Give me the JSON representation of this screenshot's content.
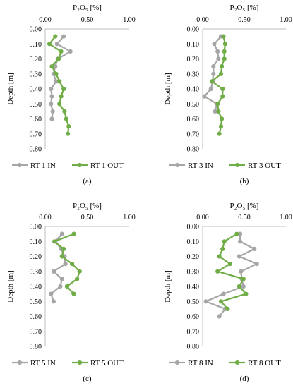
{
  "chart_data": [
    {
      "type": "line",
      "panel_label": "(a)",
      "title": "P₂O₅ [%]",
      "ylabel": "Depth [m]",
      "xlim": [
        0,
        1
      ],
      "ylim": [
        0,
        0.8
      ],
      "y_reversed": true,
      "x_axis_position": "top",
      "xticks": [
        "0.00",
        "0.50",
        "1.00"
      ],
      "yticks": [
        "0.00",
        "0.10",
        "0.20",
        "0.30",
        "0.40",
        "0.50",
        "0.60",
        "0.70",
        "0.80"
      ],
      "legend": "bottom",
      "series": [
        {
          "name": "RT 1 IN",
          "color": "#a6a6a6",
          "points": [
            [
              0.22,
              0.05
            ],
            [
              0.14,
              0.1
            ],
            [
              0.3,
              0.15
            ],
            [
              0.15,
              0.2
            ],
            [
              0.12,
              0.25
            ],
            [
              0.1,
              0.3
            ],
            [
              0.13,
              0.35
            ],
            [
              0.07,
              0.4
            ],
            [
              0.08,
              0.45
            ],
            [
              0.07,
              0.5
            ],
            [
              0.09,
              0.55
            ],
            [
              0.08,
              0.6
            ]
          ]
        },
        {
          "name": "RT 1 OUT",
          "color": "#70ad47",
          "points": [
            [
              0.12,
              0.05
            ],
            [
              0.05,
              0.1
            ],
            [
              0.19,
              0.15
            ],
            [
              0.16,
              0.2
            ],
            [
              0.08,
              0.25
            ],
            [
              0.13,
              0.3
            ],
            [
              0.17,
              0.35
            ],
            [
              0.22,
              0.4
            ],
            [
              0.19,
              0.45
            ],
            [
              0.17,
              0.5
            ],
            [
              0.23,
              0.55
            ],
            [
              0.25,
              0.6
            ],
            [
              0.28,
              0.65
            ],
            [
              0.27,
              0.7
            ]
          ]
        }
      ]
    },
    {
      "type": "line",
      "panel_label": "(b)",
      "title": "P₂O₅ [%]",
      "ylabel": "Depth [m]",
      "xlim": [
        0,
        1
      ],
      "ylim": [
        0,
        0.8
      ],
      "y_reversed": true,
      "x_axis_position": "top",
      "xticks": [
        "0.00",
        "0.50",
        "1.00"
      ],
      "yticks": [
        "0.00",
        "0.10",
        "0.20",
        "0.30",
        "0.40",
        "0.50",
        "0.60",
        "0.70",
        "0.80"
      ],
      "legend": "bottom",
      "series": [
        {
          "name": "RT 3 IN",
          "color": "#a6a6a6",
          "points": [
            [
              0.22,
              0.05
            ],
            [
              0.14,
              0.1
            ],
            [
              0.18,
              0.15
            ],
            [
              0.19,
              0.2
            ],
            [
              0.13,
              0.25
            ],
            [
              0.13,
              0.3
            ],
            [
              0.12,
              0.35
            ],
            [
              0.1,
              0.4
            ],
            [
              0.02,
              0.45
            ],
            [
              0.17,
              0.5
            ],
            [
              0.15,
              0.55
            ]
          ]
        },
        {
          "name": "RT 3 OUT",
          "color": "#70ad47",
          "points": [
            [
              0.25,
              0.05
            ],
            [
              0.27,
              0.1
            ],
            [
              0.26,
              0.15
            ],
            [
              0.26,
              0.2
            ],
            [
              0.23,
              0.25
            ],
            [
              0.22,
              0.3
            ],
            [
              0.11,
              0.35
            ],
            [
              0.24,
              0.4
            ],
            [
              0.24,
              0.45
            ],
            [
              0.18,
              0.5
            ],
            [
              0.19,
              0.55
            ],
            [
              0.23,
              0.6
            ],
            [
              0.22,
              0.65
            ],
            [
              0.2,
              0.7
            ]
          ]
        }
      ]
    },
    {
      "type": "line",
      "panel_label": "(c)",
      "title": "P₂O₅ [%]",
      "ylabel": "Depth [m]",
      "xlim": [
        0,
        1
      ],
      "ylim": [
        0,
        0.8
      ],
      "y_reversed": true,
      "x_axis_position": "top",
      "xticks": [
        "0.00",
        "0.50",
        "1.00"
      ],
      "yticks": [
        "0.00",
        "0.10",
        "0.20",
        "0.30",
        "0.40",
        "0.50",
        "0.60",
        "0.70",
        "0.80"
      ],
      "legend": "bottom",
      "series": [
        {
          "name": "RT 5 IN",
          "color": "#a6a6a6",
          "points": [
            [
              0.2,
              0.05
            ],
            [
              0.12,
              0.1
            ],
            [
              0.19,
              0.15
            ],
            [
              0.23,
              0.2
            ],
            [
              0.24,
              0.25
            ],
            [
              0.1,
              0.3
            ],
            [
              0.2,
              0.35
            ],
            [
              0.18,
              0.4
            ],
            [
              0.07,
              0.45
            ],
            [
              0.1,
              0.5
            ]
          ]
        },
        {
          "name": "RT 5 OUT",
          "color": "#70ad47",
          "points": [
            [
              0.34,
              0.05
            ],
            [
              0.11,
              0.1
            ],
            [
              0.22,
              0.15
            ],
            [
              0.2,
              0.2
            ],
            [
              0.32,
              0.25
            ],
            [
              0.41,
              0.3
            ],
            [
              0.38,
              0.35
            ],
            [
              0.26,
              0.4
            ],
            [
              0.34,
              0.45
            ]
          ]
        }
      ]
    },
    {
      "type": "line",
      "panel_label": "(d)",
      "title": "P₂O₅ [%]",
      "ylabel": "Depth [m]",
      "xlim": [
        0,
        1
      ],
      "ylim": [
        0,
        0.8
      ],
      "y_reversed": true,
      "x_axis_position": "top",
      "xticks": [
        "0.00",
        "0.50",
        "1.00"
      ],
      "yticks": [
        "0.00",
        "0.10",
        "0.20",
        "0.30",
        "0.40",
        "0.50",
        "0.60",
        "0.70",
        "0.80"
      ],
      "legend": "bottom",
      "series": [
        {
          "name": "RT 8 IN",
          "color": "#a6a6a6",
          "points": [
            [
              0.45,
              0.05
            ],
            [
              0.45,
              0.1
            ],
            [
              0.62,
              0.15
            ],
            [
              0.44,
              0.2
            ],
            [
              0.65,
              0.25
            ],
            [
              0.46,
              0.3
            ],
            [
              0.47,
              0.35
            ],
            [
              0.49,
              0.4
            ],
            [
              0.25,
              0.45
            ],
            [
              0.04,
              0.5
            ],
            [
              0.27,
              0.55
            ],
            [
              0.2,
              0.6
            ]
          ]
        },
        {
          "name": "RT 8 OUT",
          "color": "#70ad47",
          "points": [
            [
              0.41,
              0.05
            ],
            [
              0.26,
              0.1
            ],
            [
              0.24,
              0.15
            ],
            [
              0.2,
              0.2
            ],
            [
              0.33,
              0.25
            ],
            [
              0.18,
              0.3
            ],
            [
              0.49,
              0.35
            ],
            [
              0.44,
              0.4
            ],
            [
              0.52,
              0.45
            ],
            [
              0.22,
              0.5
            ],
            [
              0.3,
              0.55
            ]
          ]
        }
      ]
    }
  ]
}
